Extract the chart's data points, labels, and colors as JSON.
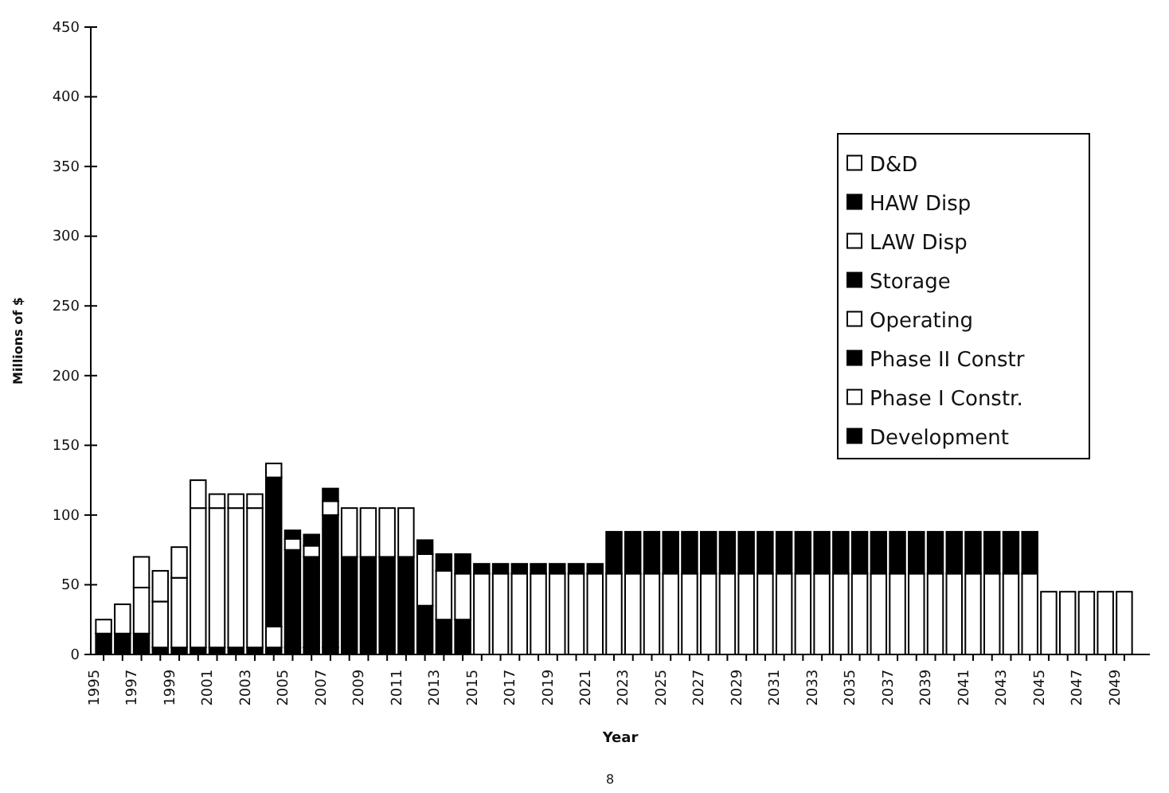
{
  "chart_data": {
    "type": "bar",
    "stacked": true,
    "xlabel": "Year",
    "ylabel": "Millions of $",
    "ylim": [
      0,
      450
    ],
    "yticks": [
      0,
      50,
      100,
      150,
      200,
      250,
      300,
      350,
      400,
      450
    ],
    "legend": "top right",
    "annotations": [
      "8"
    ],
    "categories": [
      "1995",
      null,
      "1997",
      null,
      "1999",
      null,
      "2001",
      null,
      "2003",
      null,
      "2005",
      null,
      "2007",
      null,
      "2009",
      null,
      "2011",
      null,
      "2013",
      null,
      "2015",
      null,
      "2017",
      null,
      "2019",
      null,
      "2021",
      null,
      "2023",
      null,
      "2025",
      null,
      "2027",
      null,
      "2029",
      null,
      "2031",
      null,
      "2033",
      null,
      "2035",
      null,
      "2037",
      null,
      "2039",
      null,
      "2041",
      null,
      "2043",
      null,
      "2045",
      null,
      "2047",
      null,
      "2049"
    ],
    "series": [
      {
        "name": "Development",
        "color": "#000000",
        "values": [
          15,
          15,
          15,
          5,
          5,
          5,
          5,
          5,
          5,
          5,
          5,
          5,
          5,
          0,
          0,
          0,
          0,
          0,
          0,
          0,
          0,
          0,
          0,
          0,
          0,
          0,
          0,
          0,
          0,
          0,
          0,
          0,
          0,
          0,
          0,
          0,
          0,
          0,
          0,
          0,
          0,
          0,
          0,
          0,
          0,
          0,
          0,
          0,
          0,
          0,
          0,
          0,
          0,
          0,
          0
        ]
      },
      {
        "name": "Phase I Constr.",
        "color": "#ffffff",
        "values": [
          10,
          21,
          33,
          33,
          50,
          100,
          100,
          100,
          100,
          15,
          0,
          0,
          0,
          0,
          0,
          0,
          0,
          0,
          0,
          0,
          0,
          0,
          0,
          0,
          0,
          0,
          0,
          0,
          0,
          0,
          0,
          0,
          0,
          0,
          0,
          0,
          0,
          0,
          0,
          0,
          0,
          0,
          0,
          0,
          0,
          0,
          0,
          0,
          0,
          0,
          0,
          0,
          0,
          0,
          0
        ]
      },
      {
        "name": "Phase II Constr",
        "color": "#000000",
        "values": [
          0,
          0,
          0,
          0,
          0,
          0,
          0,
          0,
          0,
          107,
          70,
          65,
          95,
          70,
          70,
          70,
          70,
          35,
          25,
          25,
          0,
          0,
          0,
          0,
          0,
          0,
          0,
          0,
          0,
          0,
          0,
          0,
          0,
          0,
          0,
          0,
          0,
          0,
          0,
          0,
          0,
          0,
          0,
          0,
          0,
          0,
          0,
          0,
          0,
          0,
          0,
          0,
          0,
          0,
          0
        ]
      },
      {
        "name": "Operating",
        "color": "#ffffff",
        "values": [
          0,
          0,
          22,
          22,
          22,
          20,
          10,
          10,
          10,
          10,
          8,
          8,
          10,
          35,
          35,
          35,
          35,
          37,
          35,
          33,
          58,
          58,
          58,
          58,
          58,
          58,
          58,
          58,
          58,
          58,
          58,
          58,
          58,
          58,
          58,
          58,
          58,
          58,
          58,
          58,
          58,
          58,
          58,
          58,
          58,
          58,
          58,
          58,
          58,
          58,
          45,
          45,
          45,
          45,
          45
        ]
      },
      {
        "name": "Storage",
        "color": "#000000",
        "values": [
          0,
          0,
          0,
          0,
          0,
          0,
          0,
          0,
          0,
          0,
          6,
          8,
          9,
          0,
          0,
          0,
          0,
          10,
          12,
          14,
          7,
          7,
          7,
          7,
          7,
          7,
          7,
          0,
          0,
          0,
          0,
          0,
          0,
          0,
          0,
          0,
          0,
          0,
          0,
          0,
          0,
          0,
          0,
          0,
          0,
          0,
          0,
          0,
          0,
          0,
          0,
          0,
          0,
          0,
          0
        ]
      },
      {
        "name": "LAW Disp",
        "color": "#ffffff",
        "values": [
          0,
          0,
          0,
          0,
          0,
          0,
          0,
          0,
          0,
          0,
          0,
          0,
          0,
          0,
          0,
          0,
          0,
          0,
          0,
          0,
          0,
          0,
          0,
          0,
          0,
          0,
          0,
          0,
          0,
          0,
          0,
          0,
          0,
          0,
          0,
          0,
          0,
          0,
          0,
          0,
          0,
          0,
          0,
          0,
          0,
          0,
          0,
          0,
          0,
          0,
          0,
          0,
          0,
          0,
          0
        ]
      },
      {
        "name": "HAW Disp",
        "color": "#000000",
        "values": [
          0,
          0,
          0,
          0,
          0,
          0,
          0,
          0,
          0,
          0,
          0,
          0,
          0,
          0,
          0,
          0,
          0,
          0,
          0,
          0,
          0,
          0,
          0,
          0,
          0,
          0,
          0,
          30,
          30,
          30,
          30,
          30,
          30,
          30,
          30,
          30,
          30,
          30,
          30,
          30,
          30,
          30,
          30,
          30,
          30,
          30,
          30,
          30,
          30,
          30,
          0,
          0,
          0,
          0,
          0
        ]
      },
      {
        "name": "D&D",
        "color": "#ffffff",
        "values": [
          0,
          0,
          0,
          0,
          0,
          0,
          0,
          0,
          0,
          0,
          0,
          0,
          0,
          0,
          0,
          0,
          0,
          0,
          0,
          0,
          0,
          0,
          0,
          0,
          0,
          0,
          0,
          0,
          0,
          0,
          0,
          0,
          0,
          0,
          0,
          0,
          0,
          0,
          0,
          0,
          0,
          0,
          0,
          0,
          0,
          0,
          0,
          0,
          0,
          0,
          0,
          0,
          0,
          0,
          0
        ]
      }
    ]
  }
}
